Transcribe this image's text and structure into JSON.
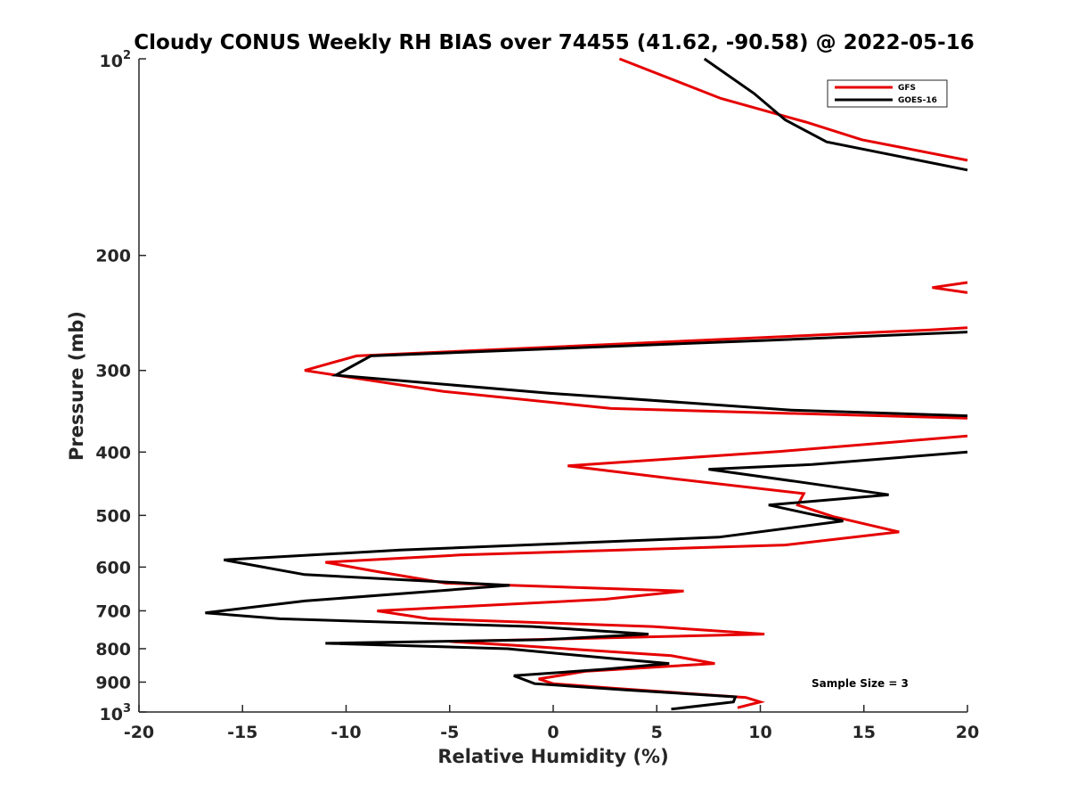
{
  "chart_data": {
    "type": "line",
    "title": "Cloudy CONUS Weekly RH BIAS over 74455 (41.62, -90.58) @ 2022-05-16",
    "xlabel": "Relative Humidity (%)",
    "ylabel": "Pressure (mb)",
    "xlim": [
      -20,
      20
    ],
    "ylim": [
      100,
      1000
    ],
    "y_scale": "log",
    "y_reversed": true,
    "grid": false,
    "legend_position": "top-right",
    "x_ticks": [
      "-20",
      "-15",
      "-10",
      "-5",
      "0",
      "5",
      "10",
      "15",
      "20"
    ],
    "y_ticks": [
      {
        "value": 100,
        "base": "10",
        "exp": "2"
      },
      {
        "value": 200,
        "base": "200",
        "exp": ""
      },
      {
        "value": 300,
        "base": "300",
        "exp": ""
      },
      {
        "value": 400,
        "base": "400",
        "exp": ""
      },
      {
        "value": 500,
        "base": "500",
        "exp": ""
      },
      {
        "value": 600,
        "base": "600",
        "exp": ""
      },
      {
        "value": 700,
        "base": "700",
        "exp": ""
      },
      {
        "value": 800,
        "base": "800",
        "exp": ""
      },
      {
        "value": 900,
        "base": "900",
        "exp": ""
      },
      {
        "value": 1000,
        "base": "10",
        "exp": "3"
      }
    ],
    "annotation": "Sample Size = 3",
    "series": [
      {
        "name": "GFS",
        "color": "#e60000",
        "points": [
          [
            3.2,
            100
          ],
          [
            8.1,
            115
          ],
          [
            12.2,
            125
          ],
          [
            14.9,
            133
          ],
          [
            20.0,
            143
          ],
          [
            null,
            215
          ],
          [
            20.0,
            220
          ],
          [
            18.3,
            224
          ],
          [
            20.0,
            228
          ],
          [
            null,
            240
          ],
          [
            20.0,
            258
          ],
          [
            18.2,
            260
          ],
          [
            -9.5,
            285
          ],
          [
            -12.0,
            300
          ],
          [
            -5.3,
            323
          ],
          [
            2.8,
            343
          ],
          [
            20.0,
            355
          ],
          [
            null,
            370
          ],
          [
            20.0,
            378
          ],
          [
            11.0,
            399
          ],
          [
            0.7,
            420
          ],
          [
            6.0,
            440
          ],
          [
            12.1,
            463
          ],
          [
            11.8,
            482
          ],
          [
            13.5,
            502
          ],
          [
            16.7,
            530
          ],
          [
            11.2,
            555
          ],
          [
            -4.5,
            575
          ],
          [
            -11.0,
            590
          ],
          [
            -8.7,
            608
          ],
          [
            -5.2,
            635
          ],
          [
            6.3,
            653
          ],
          [
            2.5,
            672
          ],
          [
            -8.5,
            700
          ],
          [
            -6.0,
            720
          ],
          [
            4.8,
            740
          ],
          [
            10.2,
            760
          ],
          [
            -5.0,
            780
          ],
          [
            -2.0,
            790
          ],
          [
            5.7,
            820
          ],
          [
            7.8,
            843
          ],
          [
            1.6,
            866
          ],
          [
            -0.7,
            890
          ],
          [
            0.0,
            905
          ],
          [
            3.0,
            920
          ],
          [
            9.3,
            950
          ],
          [
            10.0,
            965
          ],
          [
            8.9,
            985
          ]
        ]
      },
      {
        "name": "GOES-16",
        "color": "#000000",
        "points": [
          [
            7.3,
            100
          ],
          [
            9.7,
            113
          ],
          [
            11.2,
            124
          ],
          [
            13.2,
            134
          ],
          [
            20.0,
            148
          ],
          [
            null,
            230
          ],
          [
            20.0,
            262
          ],
          [
            10.0,
            270
          ],
          [
            -8.8,
            285
          ],
          [
            -10.5,
            305
          ],
          [
            -0.2,
            325
          ],
          [
            11.5,
            345
          ],
          [
            20.0,
            352
          ],
          [
            null,
            385
          ],
          [
            20.0,
            400
          ],
          [
            12.5,
            418
          ],
          [
            7.5,
            425
          ],
          [
            12.0,
            445
          ],
          [
            16.2,
            465
          ],
          [
            10.4,
            482
          ],
          [
            12.2,
            496
          ],
          [
            14.0,
            510
          ],
          [
            8.0,
            540
          ],
          [
            -7.4,
            565
          ],
          [
            -15.9,
            585
          ],
          [
            -14.0,
            600
          ],
          [
            -12.0,
            616
          ],
          [
            -2.1,
            640
          ],
          [
            -12.0,
            676
          ],
          [
            -16.8,
            705
          ],
          [
            -13.2,
            720
          ],
          [
            -1.0,
            740
          ],
          [
            4.6,
            760
          ],
          [
            -0.5,
            775
          ],
          [
            -11.0,
            785
          ],
          [
            -2.2,
            800
          ],
          [
            2.8,
            828
          ],
          [
            5.6,
            843
          ],
          [
            2.5,
            860
          ],
          [
            -1.9,
            880
          ],
          [
            -0.9,
            905
          ],
          [
            3.5,
            925
          ],
          [
            8.8,
            948
          ],
          [
            8.7,
            965
          ],
          [
            5.7,
            990
          ]
        ]
      }
    ]
  }
}
